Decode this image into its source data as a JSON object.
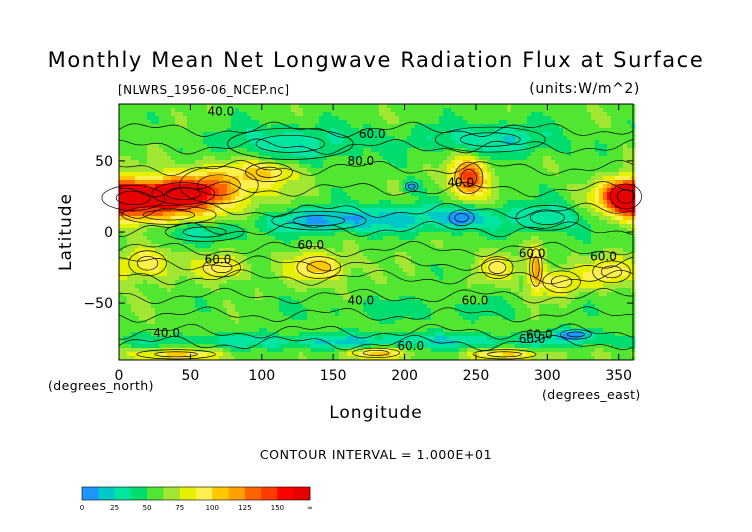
{
  "chart_data": {
    "type": "heatmap",
    "title": "Monthly Mean Net Longwave Radiation Flux at Surface",
    "source_label": "[NLWRS_1956-06_NCEP.nc]",
    "units_label": "(units:W/m^2)",
    "xlabel": "Longitude",
    "ylabel": "Latitude",
    "x_unit_label": "(degrees_north)",
    "x_unit_label_right": "(degrees_east)",
    "xlim": [
      0,
      360
    ],
    "ylim": [
      -90,
      90
    ],
    "x_ticks": [
      "0",
      "50",
      "100",
      "150",
      "200",
      "250",
      "300",
      "350"
    ],
    "y_ticks": [
      "50",
      "0",
      "−50"
    ],
    "contour_interval_text": "CONTOUR INTERVAL = 1.000E+01",
    "contour_labels": [
      "40.0",
      "60.0",
      "80.0",
      "40.0",
      "60.0",
      "60.0",
      "60.0",
      "40.0",
      "60.0",
      "60.0",
      "60.0",
      "40.0",
      "60.0",
      "60.0"
    ],
    "legend": {
      "tick_labels": [
        "0",
        "25",
        "50",
        "75",
        "100",
        "125",
        "150",
        "∞"
      ],
      "bins": [
        {
          "from": 0,
          "to": 12.5,
          "color": "#1e96ff"
        },
        {
          "from": 12.5,
          "to": 25,
          "color": "#00c8c8"
        },
        {
          "from": 25,
          "to": 37.5,
          "color": "#00e6a0"
        },
        {
          "from": 37.5,
          "to": 50,
          "color": "#00dc6e"
        },
        {
          "from": 50,
          "to": 62.5,
          "color": "#50e632"
        },
        {
          "from": 62.5,
          "to": 75,
          "color": "#a0e632"
        },
        {
          "from": 75,
          "to": 87.5,
          "color": "#e6f000"
        },
        {
          "from": 87.5,
          "to": 100,
          "color": "#fff050"
        },
        {
          "from": 100,
          "to": 112.5,
          "color": "#ffc800"
        },
        {
          "from": 112.5,
          "to": 125,
          "color": "#ffa000"
        },
        {
          "from": 125,
          "to": 137.5,
          "color": "#ff6400"
        },
        {
          "from": 137.5,
          "to": 150,
          "color": "#ff3c00"
        },
        {
          "from": 150,
          "to": 162.5,
          "color": "#ff0000"
        },
        {
          "from": 162.5,
          "to": 175,
          "color": "#e60000"
        }
      ]
    },
    "features": [
      {
        "lon": 10,
        "lat": 24,
        "value": 165,
        "sx": 20,
        "sy": 8
      },
      {
        "lon": 45,
        "lat": 27,
        "value": 150,
        "sx": 20,
        "sy": 7
      },
      {
        "lon": 70,
        "lat": 33,
        "value": 100,
        "sx": 25,
        "sy": 12
      },
      {
        "lon": 35,
        "lat": 12,
        "value": 90,
        "sx": 30,
        "sy": 6
      },
      {
        "lon": 105,
        "lat": 42,
        "value": 95,
        "sx": 15,
        "sy": 6
      },
      {
        "lon": 245,
        "lat": 38,
        "value": 145,
        "sx": 9,
        "sy": 10
      },
      {
        "lon": 355,
        "lat": 25,
        "value": 150,
        "sx": 10,
        "sy": 8
      },
      {
        "lon": 20,
        "lat": -22,
        "value": 100,
        "sx": 12,
        "sy": 8
      },
      {
        "lon": 72,
        "lat": -25,
        "value": 100,
        "sx": 12,
        "sy": 6
      },
      {
        "lon": 140,
        "lat": -25,
        "value": 110,
        "sx": 14,
        "sy": 7
      },
      {
        "lon": 265,
        "lat": -25,
        "value": 90,
        "sx": 10,
        "sy": 7
      },
      {
        "lon": 292,
        "lat": -25,
        "value": 115,
        "sx": 4,
        "sy": 12
      },
      {
        "lon": 310,
        "lat": -35,
        "value": 95,
        "sx": 12,
        "sy": 7
      },
      {
        "lon": 345,
        "lat": -28,
        "value": 95,
        "sx": 12,
        "sy": 7
      },
      {
        "lon": 140,
        "lat": 8,
        "value": 20,
        "sx": 30,
        "sy": 6
      },
      {
        "lon": 210,
        "lat": 10,
        "value": 25,
        "sx": 45,
        "sy": 7
      },
      {
        "lon": 120,
        "lat": 62,
        "value": 30,
        "sx": 40,
        "sy": 10
      },
      {
        "lon": 260,
        "lat": 65,
        "value": 25,
        "sx": 35,
        "sy": 8
      },
      {
        "lon": 60,
        "lat": 0,
        "value": 35,
        "sx": 25,
        "sy": 6
      },
      {
        "lon": 200,
        "lat": -55,
        "value": 45,
        "sx": 60,
        "sy": 6
      },
      {
        "lon": 180,
        "lat": -77,
        "value": 25,
        "sx": 120,
        "sy": 4
      },
      {
        "lon": 40,
        "lat": -86,
        "value": 100,
        "sx": 25,
        "sy": 3
      },
      {
        "lon": 180,
        "lat": -85,
        "value": 110,
        "sx": 15,
        "sy": 3
      },
      {
        "lon": 270,
        "lat": -86,
        "value": 100,
        "sx": 20,
        "sy": 3
      },
      {
        "lon": 320,
        "lat": -72,
        "value": 5,
        "sx": 10,
        "sy": 3
      },
      {
        "lon": 205,
        "lat": 32,
        "value": 5,
        "sx": 4,
        "sy": 3
      },
      {
        "lon": 240,
        "lat": 10,
        "value": 20,
        "sx": 8,
        "sy": 5
      },
      {
        "lon": 300,
        "lat": 10,
        "value": 30,
        "sx": 20,
        "sy": 8
      }
    ],
    "background_value": 58
  }
}
